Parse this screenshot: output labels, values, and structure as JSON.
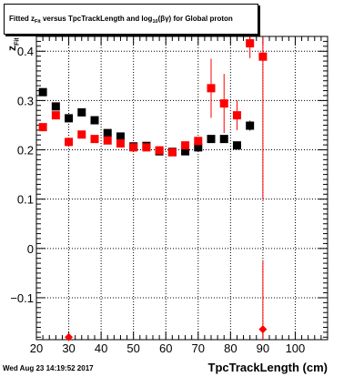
{
  "header": {
    "title_prefix": "Fitted  z",
    "title_sub": "Fit",
    "title_middle": " versus TpcTrackLength and log",
    "title_sub2": "10",
    "title_suffix": "(βγ) for Global proton"
  },
  "axes": {
    "ylabel_main": "z",
    "ylabel_sub": "Fit",
    "xlabel": "TpcTrackLength (cm)"
  },
  "footer": {
    "timestamp": "Wed Aug 23 14:19:52 2017"
  },
  "colors": {
    "series_black": "#000000",
    "series_red": "#ff0000",
    "grid": "#000000"
  },
  "chart_data": {
    "type": "scatter",
    "xlim": [
      20,
      110
    ],
    "ylim": [
      -0.185,
      0.43
    ],
    "grid": true,
    "x_ticks": [
      20,
      30,
      40,
      50,
      60,
      70,
      80,
      90,
      100
    ],
    "y_ticks": [
      -0.1,
      0,
      0.1,
      0.2,
      0.3,
      0.4
    ],
    "x_tick_labels": [
      "20",
      "30",
      "40",
      "50",
      "60",
      "70",
      "80",
      "90",
      "100"
    ],
    "y_tick_labels": [
      "−0.1",
      "0",
      "0.1",
      "0.2",
      "0.3",
      "0.4"
    ],
    "series": [
      {
        "color": "#000000",
        "marker": "square",
        "points": [
          {
            "x": 22,
            "y": 0.317,
            "err": 0.006
          },
          {
            "x": 26,
            "y": 0.288,
            "err": 0.005
          },
          {
            "x": 30,
            "y": 0.264,
            "err": 0.005
          },
          {
            "x": 34,
            "y": 0.276,
            "err": 0.005
          },
          {
            "x": 38,
            "y": 0.26,
            "err": 0.004
          },
          {
            "x": 42,
            "y": 0.234,
            "err": 0.004
          },
          {
            "x": 46,
            "y": 0.227,
            "err": 0.004
          },
          {
            "x": 50,
            "y": 0.207,
            "err": 0.004
          },
          {
            "x": 54,
            "y": 0.208,
            "err": 0.004
          },
          {
            "x": 58,
            "y": 0.197,
            "err": 0.004
          },
          {
            "x": 62,
            "y": 0.196,
            "err": 0.004
          },
          {
            "x": 66,
            "y": 0.197,
            "err": 0.004
          },
          {
            "x": 70,
            "y": 0.205,
            "err": 0.004
          },
          {
            "x": 74,
            "y": 0.222,
            "err": 0.005
          },
          {
            "x": 78,
            "y": 0.222,
            "err": 0.005
          },
          {
            "x": 82,
            "y": 0.209,
            "err": 0.007
          },
          {
            "x": 86,
            "y": 0.249,
            "err": 0.01
          }
        ]
      },
      {
        "color": "#ff0000",
        "marker": "square",
        "points": [
          {
            "x": 22,
            "y": 0.246,
            "err": 0.006
          },
          {
            "x": 26,
            "y": 0.27,
            "err": 0.005
          },
          {
            "x": 30,
            "y": 0.216,
            "err": 0.005
          },
          {
            "x": 34,
            "y": 0.231,
            "err": 0.004
          },
          {
            "x": 38,
            "y": 0.222,
            "err": 0.004
          },
          {
            "x": 42,
            "y": 0.219,
            "err": 0.004
          },
          {
            "x": 46,
            "y": 0.213,
            "err": 0.004
          },
          {
            "x": 50,
            "y": 0.205,
            "err": 0.004
          },
          {
            "x": 54,
            "y": 0.205,
            "err": 0.004
          },
          {
            "x": 58,
            "y": 0.199,
            "err": 0.004
          },
          {
            "x": 62,
            "y": 0.195,
            "err": 0.004
          },
          {
            "x": 66,
            "y": 0.209,
            "err": 0.004
          },
          {
            "x": 70,
            "y": 0.218,
            "err": 0.005
          },
          {
            "x": 74,
            "y": 0.325,
            "err": 0.06
          },
          {
            "x": 78,
            "y": 0.294,
            "err": 0.06
          },
          {
            "x": 82,
            "y": 0.27,
            "err": 0.03
          },
          {
            "x": 86,
            "y": 0.416,
            "err": 0.03
          },
          {
            "x": 90,
            "y": 0.389,
            "err": 0.29
          }
        ]
      },
      {
        "color": "#ff0000",
        "marker": "diamond",
        "points": [
          {
            "x": 30,
            "y": -0.18,
            "err": 0
          },
          {
            "x": 90,
            "y": -0.164,
            "err": 0.14
          }
        ]
      }
    ]
  }
}
